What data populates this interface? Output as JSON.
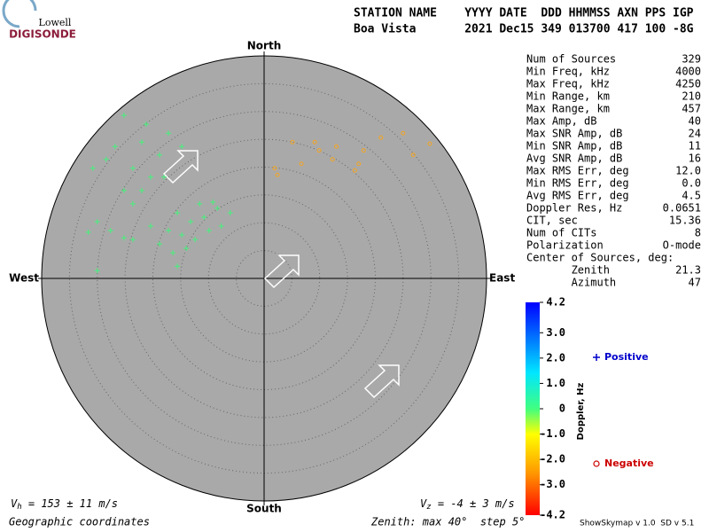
{
  "logo": {
    "top": "Lowell",
    "bottom": "DIGISONDE"
  },
  "header": {
    "line1": "STATION NAME    YYYY DATE  DDD HHMMSS AXN PPS IGP",
    "line2": "Boa Vista       2021 Dec15 349 013700 417 100 -8G"
  },
  "stats": [
    [
      "Num of Sources",
      "329"
    ],
    [
      "Min Freq, kHz",
      "4000"
    ],
    [
      "Max Freq, kHz",
      "4250"
    ],
    [
      "Min Range, km",
      "210"
    ],
    [
      "Max Range, km",
      "457"
    ],
    [
      "Max Amp, dB",
      "40"
    ],
    [
      "Max SNR Amp, dB",
      "24"
    ],
    [
      "Min SNR Amp, dB",
      "11"
    ],
    [
      "Avg SNR Amp, dB",
      "16"
    ],
    [
      "Max RMS Err, deg",
      "12.0"
    ],
    [
      "Min RMS Err, deg",
      "0.0"
    ],
    [
      "Avg RMS Err, deg",
      "4.5"
    ],
    [
      "Doppler Res, Hz",
      "0.0651"
    ],
    [
      "CIT, sec",
      "15.36"
    ],
    [
      "Num of CITs",
      "8"
    ],
    [
      "Polarization",
      "O-mode"
    ],
    [
      "Center of Sources, deg:",
      ""
    ],
    [
      "       Zenith",
      "21.3"
    ],
    [
      "       Azimuth",
      "47"
    ]
  ],
  "footer": {
    "vh_symbol": "V",
    "vh_sub": "h",
    "vh_text": " = 153 ± 11 m/s",
    "vz_symbol": "V",
    "vz_sub": "z",
    "vz_text": " = -4 ± 3 m/s",
    "coords": "Geographic coordinates",
    "zenith": "Zenith: max 40°  step 5°",
    "version": "ShowSkymap v 1.0  SD v 5.1"
  },
  "chart_data": {
    "type": "scatter",
    "compass": {
      "north": "North",
      "south": "South",
      "east": "East",
      "west": "West"
    },
    "xlim": [
      -40,
      40
    ],
    "ylim": [
      -40,
      40
    ],
    "series": [
      {
        "name": "Positive",
        "color": "#44f27a",
        "legend_color": "#0000cc",
        "x": [
          -25.2,
          -22,
          -18.8,
          -23.6,
          -26.8,
          -20.4,
          -22,
          -25.2,
          -17.2,
          -14.8,
          -28.4,
          -30.8,
          -23.6,
          -21.2,
          -18,
          -15.6,
          -13.2,
          -10.8,
          -8.4,
          -6.1,
          -17.2,
          -14.8,
          -12.4,
          -9.9,
          -14,
          -18.8,
          -11.6,
          -9.2,
          -16.4,
          -15.6,
          -7.7,
          -20.4,
          -30,
          -27.6,
          -25.2,
          -31.6,
          -23.6,
          -30
        ],
        "values": [
          29.3,
          24.5,
          22.2,
          19.8,
          23.7,
          18.2,
          15.8,
          15.8,
          26.1,
          23.7,
          21.4,
          19.8,
          13.4,
          27.7,
          18.2,
          11.8,
          10.2,
          11,
          12.6,
          11.8,
          8.6,
          7.8,
          7,
          8.6,
          5.4,
          6.2,
          13.4,
          13.7,
          4.6,
          2.2,
          9.4,
          9.4,
          10.2,
          8.6,
          7.3,
          8.3,
          7,
          1.4
        ]
      },
      {
        "name": "Negative",
        "color": "#f5a623",
        "legend_color": "#cc0000",
        "x": [
          1.9,
          5.1,
          9.1,
          13,
          6.7,
          12.3,
          17,
          17.9,
          21,
          25,
          26.8,
          29.8,
          16.3,
          2.4,
          9.9
        ],
        "values": [
          19.8,
          24.5,
          24.5,
          23.7,
          20.6,
          21.4,
          20.6,
          23,
          25.3,
          26.1,
          22.2,
          24.2,
          19.4,
          18.6,
          23
        ]
      }
    ],
    "colorbar": {
      "label": "Doppler, Hz",
      "lim": [
        -4.2,
        4.2
      ],
      "ticks": [
        4.2,
        {
          "value": 3,
          "label": "3.0"
        },
        {
          "value": 2,
          "label": "2.0"
        },
        {
          "value": 1,
          "label": "1.0"
        },
        0,
        {
          "value": -1,
          "label": "-1.0"
        },
        {
          "value": -2,
          "label": "-2.0"
        },
        {
          "value": -3,
          "label": "-3.0"
        },
        -4.2
      ]
    }
  }
}
